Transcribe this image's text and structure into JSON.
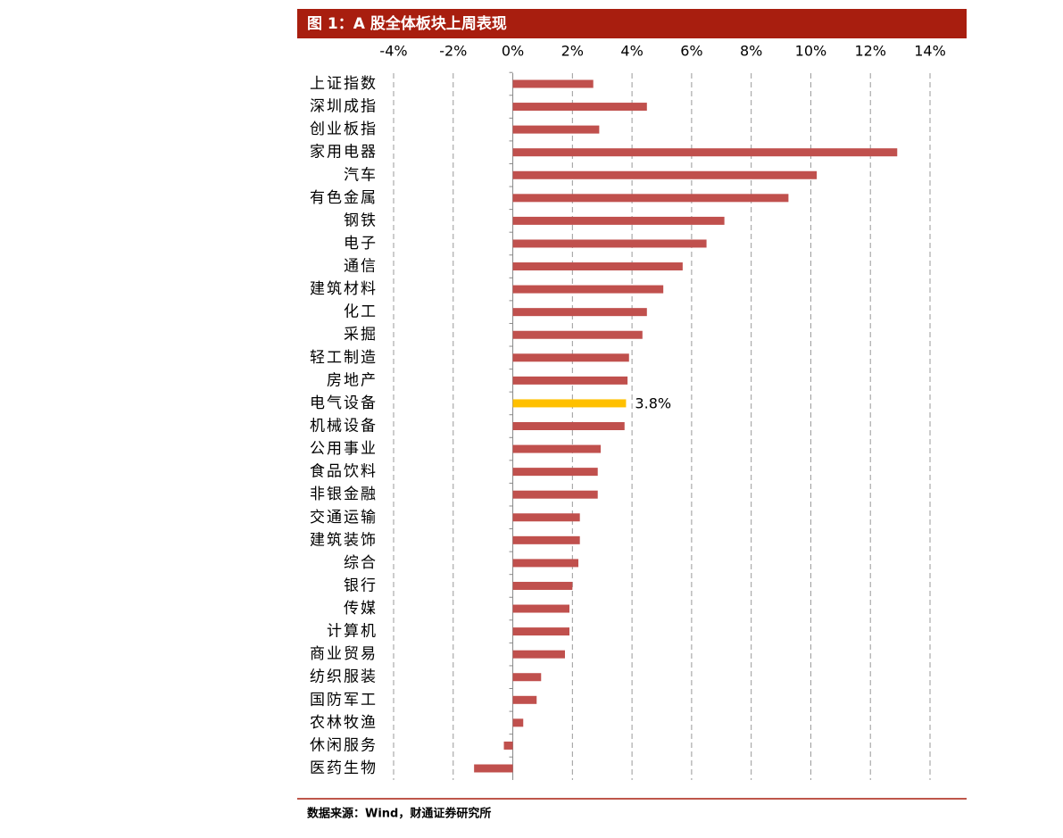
{
  "chart_data": {
    "type": "bar",
    "orientation": "horizontal",
    "title": "图 1：A 股全体板块上周表现",
    "source": "数据来源：Wind，财通证券研究所",
    "categories": [
      "上证指数",
      "深圳成指",
      "创业板指",
      "家用电器",
      "汽车",
      "有色金属",
      "钢铁",
      "电子",
      "通信",
      "建筑材料",
      "化工",
      "采掘",
      "轻工制造",
      "房地产",
      "电气设备",
      "机械设备",
      "公用事业",
      "食品饮料",
      "非银金融",
      "交通运输",
      "建筑装饰",
      "综合",
      "银行",
      "传媒",
      "计算机",
      "商业贸易",
      "纺织服装",
      "国防军工",
      "农林牧渔",
      "休闲服务",
      "医药生物"
    ],
    "values": [
      2.7,
      4.5,
      2.9,
      12.9,
      10.2,
      9.25,
      7.1,
      6.5,
      5.7,
      5.05,
      4.5,
      4.35,
      3.9,
      3.85,
      3.8,
      3.75,
      2.95,
      2.85,
      2.85,
      2.25,
      2.25,
      2.2,
      2.0,
      1.9,
      1.9,
      1.75,
      0.95,
      0.8,
      0.35,
      -0.3,
      -1.3
    ],
    "value_labels": [
      null,
      null,
      null,
      null,
      null,
      null,
      null,
      null,
      null,
      null,
      null,
      null,
      null,
      null,
      "3.8%",
      null,
      null,
      null,
      null,
      null,
      null,
      null,
      null,
      null,
      null,
      null,
      null,
      null,
      null,
      null,
      null
    ],
    "bar_colors": [
      "#c0504d",
      "#c0504d",
      "#c0504d",
      "#c0504d",
      "#c0504d",
      "#c0504d",
      "#c0504d",
      "#c0504d",
      "#c0504d",
      "#c0504d",
      "#c0504d",
      "#c0504d",
      "#c0504d",
      "#c0504d",
      "#ffc000",
      "#c0504d",
      "#c0504d",
      "#c0504d",
      "#c0504d",
      "#c0504d",
      "#c0504d",
      "#c0504d",
      "#c0504d",
      "#c0504d",
      "#c0504d",
      "#c0504d",
      "#c0504d",
      "#c0504d",
      "#c0504d",
      "#c0504d",
      "#c0504d"
    ],
    "xlim": [
      -4,
      14
    ],
    "xticks": [
      {
        "value": -4,
        "label": "-4%"
      },
      {
        "value": -2,
        "label": "-2%"
      },
      {
        "value": 0,
        "label": "0%"
      },
      {
        "value": 2,
        "label": "2%"
      },
      {
        "value": 4,
        "label": "4%"
      },
      {
        "value": 6,
        "label": "6%"
      },
      {
        "value": 8,
        "label": "8%"
      },
      {
        "value": 10,
        "label": "10%"
      },
      {
        "value": 12,
        "label": "12%"
      },
      {
        "value": 14,
        "label": "14%"
      }
    ],
    "grid": true
  }
}
